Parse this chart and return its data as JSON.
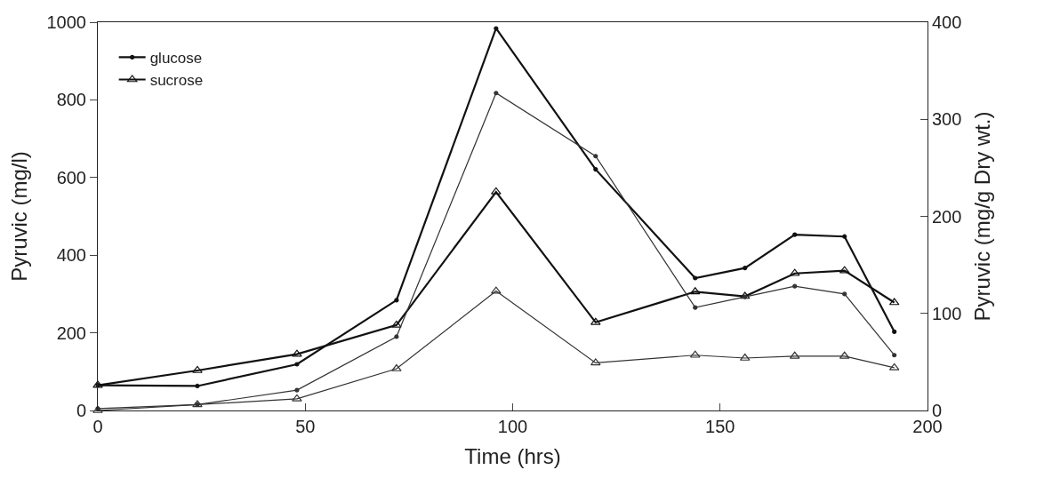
{
  "chart_data": {
    "type": "line",
    "xlabel": "Time (hrs)",
    "ylabel": "Pyruvic (mg/l)",
    "y2label": "Pyruvic (mg/g Dry wt.)",
    "x": [
      0,
      24,
      48,
      72,
      96,
      120,
      144,
      156,
      168,
      180,
      192
    ],
    "series": [
      {
        "name": "glucose",
        "color": "#111111",
        "marker": "circle",
        "values": [
          65,
          63,
          119,
          284,
          984,
          621,
          341,
          367,
          453,
          448,
          203
        ]
      },
      {
        "color": "#333333",
        "marker": "circle",
        "axis": "y2",
        "values": [
          2,
          6,
          21,
          76,
          327,
          262,
          106,
          117,
          128,
          120,
          57
        ]
      },
      {
        "name": "sucrose",
        "color": "#111111",
        "marker": "triangle",
        "values": [
          65,
          103,
          145,
          220,
          563,
          227,
          306,
          294,
          353,
          360,
          278
        ]
      },
      {
        "color": "#333333",
        "marker": "triangle",
        "axis": "y2",
        "values": [
          0,
          6,
          12,
          43,
          123,
          49,
          57,
          54,
          56,
          56,
          44
        ]
      }
    ],
    "xlim": [
      0,
      200
    ],
    "xticks": [
      0,
      50,
      100,
      150,
      200
    ],
    "ylim": [
      0,
      1000
    ],
    "yticks": [
      0,
      200,
      400,
      600,
      800,
      1000
    ],
    "y2lim": [
      0,
      400
    ],
    "y2ticks": [
      0,
      100,
      200,
      300,
      400
    ],
    "legend": "top left"
  }
}
